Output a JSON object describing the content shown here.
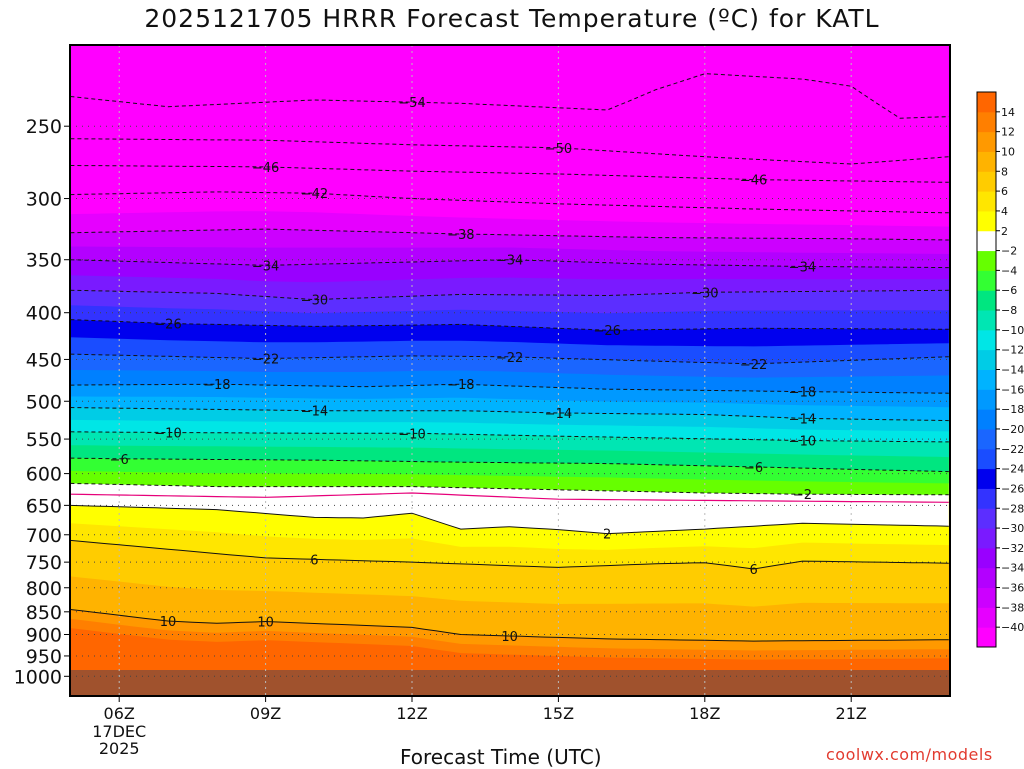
{
  "title": "2025121705 HRRR Forecast Temperature (ºC) for KATL",
  "watermark": "coolwx.com/models",
  "chart_data": {
    "type": "heatmap",
    "title": "2025121705 HRRR Forecast Temperature (ºC) for KATL",
    "xlabel": "Forecast Time (UTC)",
    "ylabel": "",
    "x_ticks": [
      "06Z",
      "09Z",
      "12Z",
      "15Z",
      "18Z",
      "21Z"
    ],
    "x_tick_sublabels": {
      "06Z": [
        "17DEC",
        "2025"
      ]
    },
    "x_range_hours_utc": [
      5,
      23
    ],
    "y_ticks": [
      250,
      300,
      350,
      400,
      450,
      500,
      550,
      600,
      650,
      700,
      750,
      800,
      850,
      900,
      950,
      1000
    ],
    "y_axis": "pressure (log scale, decreasing upward)",
    "y_range": [
      1000,
      200
    ],
    "grid": true,
    "legend": {
      "placement": "right",
      "levels": [
        -40,
        -38,
        -36,
        -34,
        -32,
        -30,
        -28,
        -26,
        -24,
        -22,
        -20,
        -18,
        -16,
        -14,
        -12,
        -10,
        -8,
        -6,
        -4,
        -2,
        2,
        4,
        6,
        8,
        10,
        12,
        14
      ],
      "colors": [
        "#ff00ff",
        "#e600ff",
        "#cc00ff",
        "#b300ff",
        "#9900ff",
        "#7a1aff",
        "#5c2eff",
        "#3333ff",
        "#0000ee",
        "#1a4dff",
        "#1a66ff",
        "#0080ff",
        "#0099ff",
        "#00b3ff",
        "#00cce6",
        "#00e6e6",
        "#00e6b3",
        "#00e680",
        "#33ff33",
        "#66ff00",
        "#ffffff",
        "#ffff00",
        "#ffe600",
        "#ffcc00",
        "#ffb300",
        "#ff9900",
        "#ff7f00",
        "#ff6600"
      ]
    },
    "isotherms": [
      {
        "value": -54,
        "label_times": [
          12
        ]
      },
      {
        "value": -50,
        "label_times": [
          15
        ]
      },
      {
        "value": -46,
        "label_times": [
          9,
          19
        ]
      },
      {
        "value": -42,
        "label_times": [
          10
        ]
      },
      {
        "value": -38,
        "label_times": [
          13
        ]
      },
      {
        "value": -34,
        "label_times": [
          9,
          14,
          20
        ]
      },
      {
        "value": -30,
        "label_times": [
          10,
          18
        ]
      },
      {
        "value": -26,
        "label_times": [
          7,
          16
        ]
      },
      {
        "value": -22,
        "label_times": [
          9,
          14,
          19
        ]
      },
      {
        "value": -18,
        "label_times": [
          8,
          13,
          20
        ]
      },
      {
        "value": -14,
        "label_times": [
          10,
          15,
          20
        ]
      },
      {
        "value": -10,
        "label_times": [
          7,
          12,
          20
        ]
      },
      {
        "value": -6,
        "label_times": [
          6,
          19
        ]
      },
      {
        "value": -2,
        "label_times": [
          20
        ]
      },
      {
        "value": 2,
        "label_times": [
          16
        ]
      },
      {
        "value": 6,
        "label_times": [
          19,
          10
        ]
      },
      {
        "value": 10,
        "label_times": [
          9,
          7,
          14
        ]
      }
    ],
    "isotherm_profiles": {
      "-54": [
        [
          5,
          232
        ],
        [
          7,
          238
        ],
        [
          10,
          234
        ],
        [
          13,
          236
        ],
        [
          16,
          240
        ],
        [
          17,
          228
        ],
        [
          18,
          219
        ],
        [
          20,
          222
        ],
        [
          21,
          226
        ],
        [
          22,
          245
        ],
        [
          23,
          244
        ]
      ],
      "-50": [
        [
          5,
          258
        ],
        [
          9,
          259
        ],
        [
          12,
          262
        ],
        [
          15,
          264
        ],
        [
          18,
          270
        ],
        [
          21,
          275
        ],
        [
          23,
          270
        ]
      ],
      "-46": [
        [
          5,
          276
        ],
        [
          9,
          277
        ],
        [
          12,
          280
        ],
        [
          15,
          282
        ],
        [
          19,
          286
        ],
        [
          23,
          288
        ]
      ],
      "-42": [
        [
          5,
          297
        ],
        [
          8,
          295
        ],
        [
          10,
          296
        ],
        [
          12,
          300
        ],
        [
          15,
          304
        ],
        [
          19,
          308
        ],
        [
          23,
          311
        ]
      ],
      "-38": [
        [
          5,
          327
        ],
        [
          9,
          324
        ],
        [
          13,
          328
        ],
        [
          17,
          331
        ],
        [
          21,
          332
        ],
        [
          23,
          333
        ]
      ],
      "-34": [
        [
          5,
          350
        ],
        [
          9,
          355
        ],
        [
          12,
          352
        ],
        [
          14,
          350
        ],
        [
          17,
          354
        ],
        [
          20,
          356
        ],
        [
          23,
          357
        ]
      ],
      "-30": [
        [
          5,
          378
        ],
        [
          8,
          381
        ],
        [
          10,
          387
        ],
        [
          13,
          382
        ],
        [
          16,
          383
        ],
        [
          18,
          380
        ],
        [
          23,
          378
        ]
      ],
      "-26": [
        [
          5,
          407
        ],
        [
          7,
          411
        ],
        [
          10,
          414
        ],
        [
          13,
          412
        ],
        [
          16,
          418
        ],
        [
          19,
          416
        ],
        [
          23,
          417
        ]
      ],
      "-22": [
        [
          5,
          444
        ],
        [
          9,
          449
        ],
        [
          12,
          446
        ],
        [
          14,
          447
        ],
        [
          17,
          452
        ],
        [
          19,
          455
        ],
        [
          23,
          447
        ]
      ],
      "-18": [
        [
          5,
          480
        ],
        [
          8,
          479
        ],
        [
          11,
          482
        ],
        [
          13,
          479
        ],
        [
          16,
          485
        ],
        [
          20,
          488
        ],
        [
          23,
          490
        ]
      ],
      "-14": [
        [
          5,
          508
        ],
        [
          10,
          512
        ],
        [
          13,
          512
        ],
        [
          15,
          515
        ],
        [
          18,
          517
        ],
        [
          20,
          522
        ],
        [
          23,
          525
        ]
      ],
      "-10": [
        [
          5,
          540
        ],
        [
          7,
          541
        ],
        [
          10,
          542
        ],
        [
          12,
          542
        ],
        [
          15,
          546
        ],
        [
          20,
          552
        ],
        [
          23,
          554
        ]
      ],
      "-6": [
        [
          5,
          577
        ],
        [
          6,
          578
        ],
        [
          10,
          580
        ],
        [
          13,
          583
        ],
        [
          16,
          585
        ],
        [
          19,
          590
        ],
        [
          23,
          597
        ]
      ],
      "-2": [
        [
          5,
          615
        ],
        [
          8,
          620
        ],
        [
          12,
          620
        ],
        [
          15,
          625
        ],
        [
          18,
          630
        ],
        [
          20,
          632
        ],
        [
          23,
          633
        ]
      ],
      "2": [
        [
          5,
          650
        ],
        [
          8,
          657
        ],
        [
          10,
          670
        ],
        [
          11,
          671
        ],
        [
          12,
          663
        ],
        [
          13,
          690
        ],
        [
          14,
          686
        ],
        [
          15,
          691
        ],
        [
          16,
          698
        ],
        [
          18,
          690
        ],
        [
          20,
          680
        ],
        [
          23,
          685
        ]
      ],
      "6": [
        [
          5,
          710
        ],
        [
          9,
          742
        ],
        [
          12,
          750
        ],
        [
          15,
          760
        ],
        [
          17,
          753
        ],
        [
          18,
          751
        ],
        [
          19,
          763
        ],
        [
          20,
          748
        ],
        [
          23,
          752
        ]
      ],
      "10": [
        [
          5,
          845
        ],
        [
          7,
          870
        ],
        [
          8,
          875
        ],
        [
          9,
          871
        ],
        [
          12,
          884
        ],
        [
          13,
          900
        ],
        [
          16,
          910
        ],
        [
          19,
          915
        ],
        [
          23,
          912
        ]
      ]
    }
  }
}
